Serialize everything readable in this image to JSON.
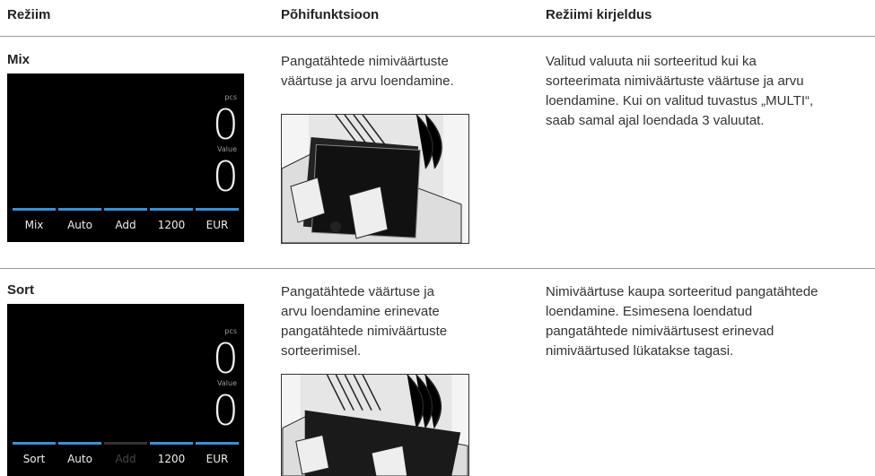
{
  "header": {
    "columns": [
      "Režiim",
      "Põhifunktsioon",
      "Režiimi kirjeldus"
    ]
  },
  "rows": [
    {
      "mode": "Mix",
      "display": {
        "pcs_label": "pcs",
        "pcs": "0",
        "value_label": "Value",
        "value": "0",
        "tabs": [
          "Mix",
          "Auto",
          "Add",
          "1200",
          "EUR"
        ]
      },
      "function": [
        "Pangatähtede nimiväärtuste",
        "väärtuse ja arvu loendamine."
      ],
      "description": [
        "Valitud valuuta nii sorteeritud kui ka",
        "sorteerimata nimiväärtuste väärtuse ja arvu",
        "loendamine. Kui on valitud tuvastus „MULTI“,",
        "saab samal ajal loendada 3 valuutat."
      ]
    },
    {
      "mode": "Sort",
      "display": {
        "pcs_label": "pcs",
        "pcs": "0",
        "value_label": "Value",
        "value": "0",
        "tabs": [
          "Sort",
          "Auto",
          "Add",
          "1200",
          "EUR"
        ]
      },
      "function": [
        "Pangatähtede väärtuse ja",
        "arvu loendamine erinevate",
        "pangatähtede nimiväärtuste",
        "sorteerimisel."
      ],
      "description": [
        "Nimiväärtuse kaupa sorteeritud pangatähtede",
        "loendamine. Esimesena loendatud",
        "pangatähtede nimiväärtusest erinevad",
        "nimiväärtused lükatakse tagasi."
      ]
    }
  ]
}
